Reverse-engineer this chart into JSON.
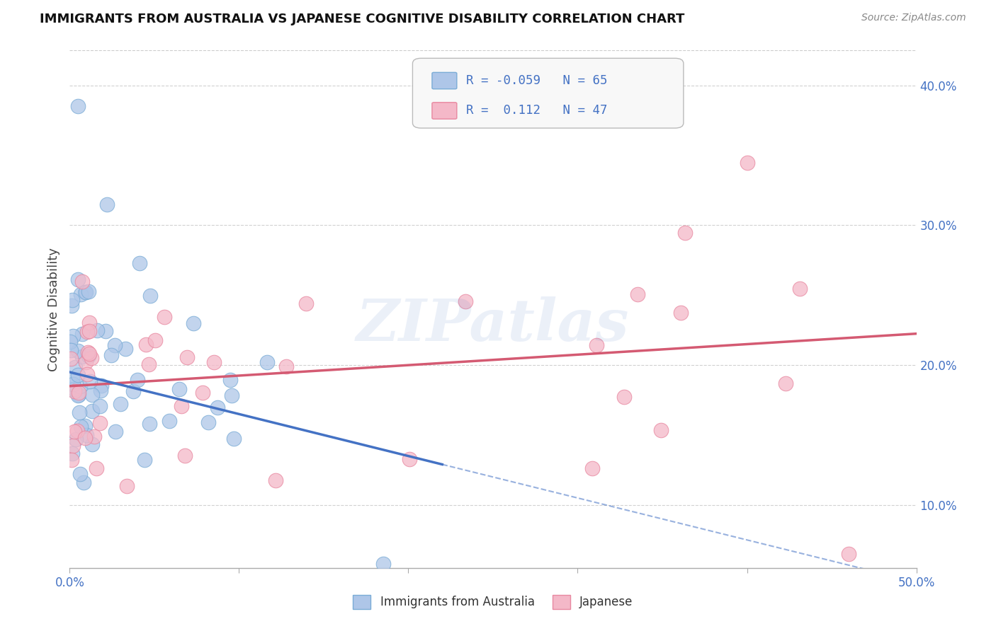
{
  "title": "IMMIGRANTS FROM AUSTRALIA VS JAPANESE COGNITIVE DISABILITY CORRELATION CHART",
  "source": "Source: ZipAtlas.com",
  "ylabel_label": "Cognitive Disability",
  "xlim": [
    0.0,
    0.5
  ],
  "ylim": [
    0.055,
    0.425
  ],
  "xticks": [
    0.0,
    0.1,
    0.2,
    0.3,
    0.4,
    0.5
  ],
  "yticks": [
    0.1,
    0.2,
    0.3,
    0.4
  ],
  "xticklabels": [
    "0.0%",
    "",
    "",
    "",
    "",
    "50.0%"
  ],
  "yticklabels": [
    "10.0%",
    "20.0%",
    "30.0%",
    "40.0%"
  ],
  "watermark": "ZIPatlas",
  "blue_face": "#aec6e8",
  "blue_edge": "#7aacd6",
  "pink_face": "#f4b8c8",
  "pink_edge": "#e888a0",
  "line_blue": "#4472c4",
  "line_pink": "#d45a72",
  "legend_text_color": "#4472c4",
  "title_color": "#111111",
  "source_color": "#888888",
  "tick_color": "#4472c4",
  "bg_color": "#ffffff",
  "grid_color": "#cccccc",
  "blue_line_solid_end": 0.22,
  "blue_line_x0": 0.0,
  "blue_line_y0": 0.195,
  "blue_line_slope": -0.3,
  "pink_line_x0": 0.0,
  "pink_line_y0": 0.185,
  "pink_line_slope": 0.075,
  "blue_N": 65,
  "pink_N": 47,
  "blue_R": -0.059,
  "pink_R": 0.112
}
